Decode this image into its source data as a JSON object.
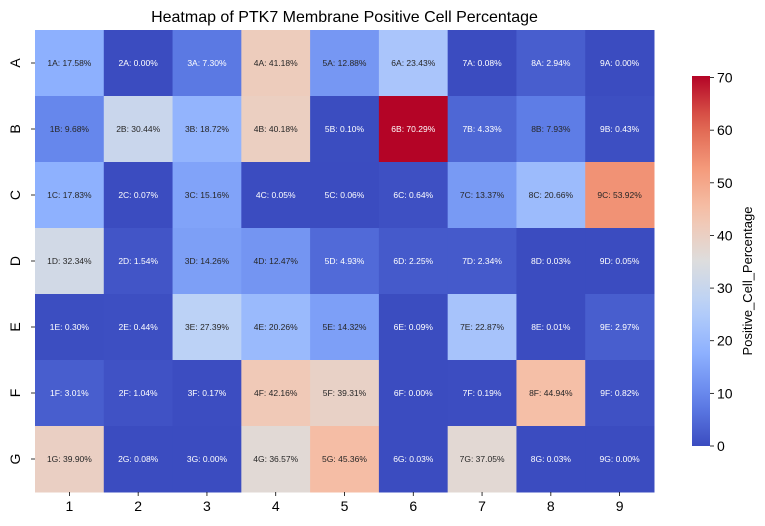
{
  "chart_data": {
    "type": "heatmap",
    "title": "Heatmap of PTK7 Membrane Positive Cell Percentage",
    "x_categories": [
      "1",
      "2",
      "3",
      "4",
      "5",
      "6",
      "7",
      "8",
      "9"
    ],
    "y_categories": [
      "A",
      "B",
      "C",
      "D",
      "E",
      "F",
      "G"
    ],
    "values": [
      [
        17.58,
        0.0,
        7.3,
        41.18,
        12.88,
        23.43,
        0.08,
        2.94,
        0.0
      ],
      [
        9.68,
        30.44,
        18.72,
        40.18,
        0.1,
        70.29,
        4.33,
        7.93,
        0.43
      ],
      [
        17.83,
        0.07,
        15.16,
        0.05,
        0.06,
        0.64,
        13.37,
        20.66,
        53.92
      ],
      [
        32.34,
        1.54,
        14.26,
        12.47,
        4.93,
        2.25,
        2.34,
        0.03,
        0.05
      ],
      [
        0.3,
        0.44,
        27.39,
        20.26,
        14.32,
        0.09,
        22.87,
        0.01,
        2.97
      ],
      [
        3.01,
        1.04,
        0.17,
        42.16,
        39.31,
        0.0,
        0.19,
        44.94,
        0.82
      ],
      [
        39.9,
        0.08,
        0.0,
        36.57,
        45.36,
        0.03,
        37.05,
        0.03,
        0.0
      ]
    ],
    "annotations": [
      [
        "1A: 17.58%",
        "2A: 0.00%",
        "3A: 7.30%",
        "4A: 41.18%",
        "5A: 12.88%",
        "6A: 23.43%",
        "7A: 0.08%",
        "8A: 2.94%",
        "9A: 0.00%"
      ],
      [
        "1B: 9.68%",
        "2B: 30.44%",
        "3B: 18.72%",
        "4B: 40.18%",
        "5B: 0.10%",
        "6B: 70.29%",
        "7B: 4.33%",
        "8B: 7.93%",
        "9B: 0.43%"
      ],
      [
        "1C: 17.83%",
        "2C: 0.07%",
        "3C: 15.16%",
        "4C: 0.05%",
        "5C: 0.06%",
        "6C: 0.64%",
        "7C: 13.37%",
        "8C: 20.66%",
        "9C: 53.92%"
      ],
      [
        "1D: 32.34%",
        "2D: 1.54%",
        "3D: 14.26%",
        "4D: 12.47%",
        "5D: 4.93%",
        "6D: 2.25%",
        "7D: 2.34%",
        "8D: 0.03%",
        "9D: 0.05%"
      ],
      [
        "1E: 0.30%",
        "2E: 0.44%",
        "3E: 27.39%",
        "4E: 20.26%",
        "5E: 14.32%",
        "6E: 0.09%",
        "7E: 22.87%",
        "8E: 0.01%",
        "9E: 2.97%"
      ],
      [
        "1F: 3.01%",
        "2F: 1.04%",
        "3F: 0.17%",
        "4F: 42.16%",
        "5F: 39.31%",
        "6F: 0.00%",
        "7F: 0.19%",
        "8F: 44.94%",
        "9F: 0.82%"
      ],
      [
        "1G: 39.90%",
        "2G: 0.08%",
        "3G: 0.00%",
        "4G: 36.57%",
        "5G: 45.36%",
        "6G: 0.03%",
        "7G: 37.05%",
        "8G: 0.03%",
        "9G: 0.00%"
      ]
    ],
    "colormap": "coolwarm",
    "vmin": 0,
    "vmax": 70.29,
    "colorbar": {
      "label": "Positive_Cell_Percentage",
      "ticks": [
        "0",
        "10",
        "20",
        "30",
        "40",
        "50",
        "60",
        "70"
      ]
    }
  }
}
